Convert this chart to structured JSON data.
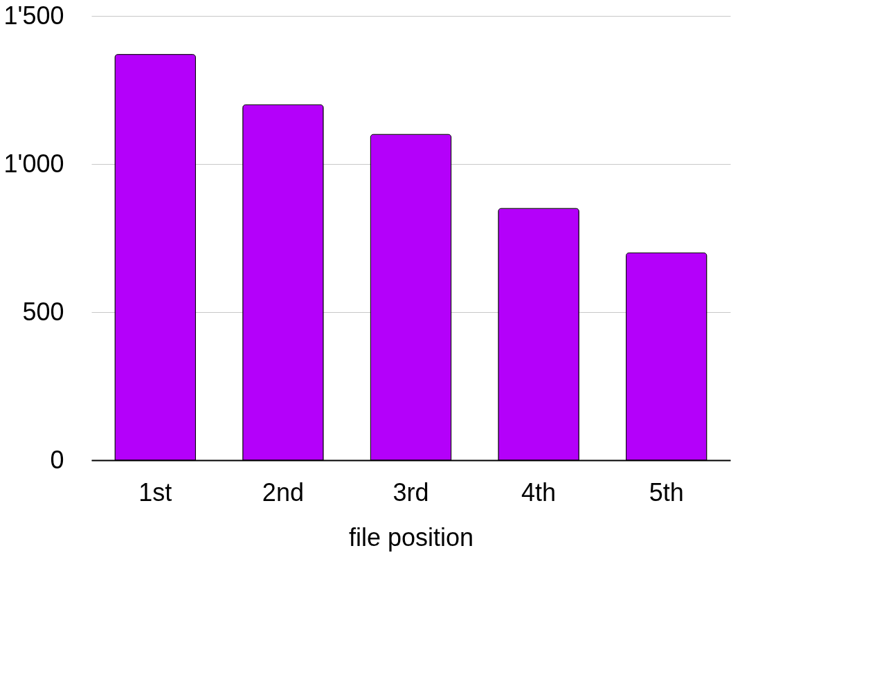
{
  "chart_data": {
    "type": "bar",
    "xlabel": "file position",
    "categories": [
      "1st",
      "2nd",
      "3rd",
      "4th",
      "5th"
    ],
    "values": [
      1370,
      1200,
      1100,
      850,
      700
    ],
    "color": "#b400fa",
    "ylim": [
      0,
      1500
    ],
    "yticks": [
      0,
      500,
      {
        "value": 1000,
        "label": "1'000"
      },
      {
        "value": 1500,
        "label": "1'500"
      }
    ],
    "grid": "y"
  }
}
